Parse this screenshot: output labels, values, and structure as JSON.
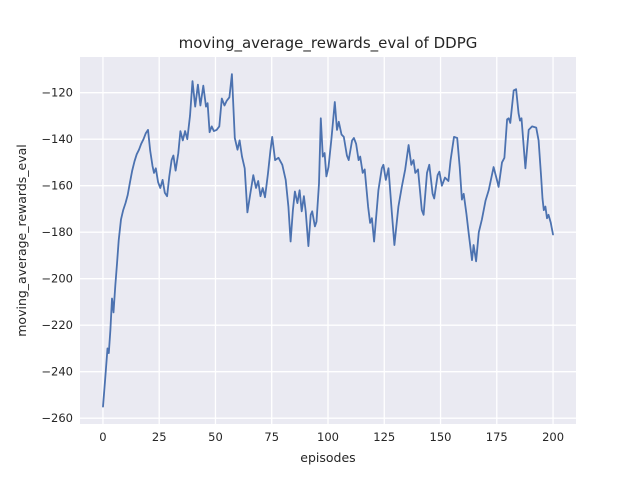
{
  "chart_data": {
    "type": "line",
    "title": "moving_average_rewards_eval of DDPG",
    "xlabel": "episodes",
    "ylabel": "moving_average_rewards_eval",
    "xlim": [
      -10.2,
      210.2
    ],
    "ylim": [
      -262.5,
      -104.65
    ],
    "grid": true,
    "legend_position": "none",
    "plot_background": "#eaeaf2",
    "grid_color": "#ffffff",
    "text_color": "#262626",
    "xticks": [
      {
        "value": 0,
        "label": "0"
      },
      {
        "value": 25,
        "label": "25"
      },
      {
        "value": 50,
        "label": "50"
      },
      {
        "value": 75,
        "label": "75"
      },
      {
        "value": 100,
        "label": "100"
      },
      {
        "value": 125,
        "label": "125"
      },
      {
        "value": 150,
        "label": "150"
      },
      {
        "value": 175,
        "label": "175"
      },
      {
        "value": 200,
        "label": "200"
      }
    ],
    "yticks": [
      {
        "value": -120,
        "label": "−120"
      },
      {
        "value": -140,
        "label": "−140"
      },
      {
        "value": -160,
        "label": "−160"
      },
      {
        "value": -180,
        "label": "−180"
      },
      {
        "value": -200,
        "label": "−200"
      },
      {
        "value": -220,
        "label": "−220"
      },
      {
        "value": -240,
        "label": "−240"
      },
      {
        "value": -260,
        "label": "−260"
      }
    ],
    "series": [
      {
        "name": "moving_average_rewards_eval",
        "color": "#4c72b0",
        "x": [
          0,
          1,
          2,
          2.6,
          3.3,
          4,
          4.7,
          5.5,
          6.3,
          7,
          8,
          9,
          10,
          11,
          12,
          13,
          14,
          15,
          16,
          17,
          18,
          19,
          20,
          21,
          22,
          22.7,
          23.5,
          24.5,
          25.5,
          26.5,
          27.5,
          28.5,
          29.5,
          30.5,
          31.3,
          32.3,
          33.5,
          34.4,
          35.5,
          36.5,
          37.5,
          38.7,
          39.8,
          41,
          42.2,
          43.3,
          44.6,
          45.8,
          46.5,
          47.4,
          48.3,
          49.3,
          50.5,
          51.7,
          52.8,
          54,
          55,
          56.2,
          57.3,
          58.6,
          59.8,
          60.7,
          61.8,
          63,
          64.2,
          65.4,
          66.8,
          68,
          69,
          70,
          71,
          72,
          73.3,
          74.4,
          75.2,
          76.5,
          78,
          79.7,
          81.2,
          82.4,
          83.4,
          84.4,
          85.3,
          86.4,
          87.4,
          88.3,
          89.3,
          90.1,
          91.3,
          92.3,
          93,
          94.2,
          94.9,
          96,
          96.8,
          97.7,
          98.5,
          99.3,
          100.2,
          101.5,
          103,
          104,
          104.8,
          106,
          107,
          108.4,
          109.2,
          110.7,
          111.5,
          112.5,
          113.6,
          114.3,
          115.4,
          116.3,
          117.8,
          118.7,
          119.5,
          120.5,
          122.4,
          123.9,
          124.6,
          125.7,
          126.9,
          128.4,
          129.5,
          131.3,
          132.8,
          134.3,
          135.8,
          137,
          138,
          138.8,
          140,
          141.7,
          142.5,
          144,
          145,
          146.5,
          147.2,
          148.7,
          149.5,
          150.6,
          152,
          153.5,
          154.5,
          156,
          157.4,
          158.5,
          159.5,
          160.3,
          161.5,
          162.5,
          164,
          164.7,
          165.8,
          167,
          168.4,
          170,
          171.4,
          173.6,
          175.2,
          175.8,
          177.3,
          178.4,
          179.6,
          180.3,
          181,
          182.5,
          183.6,
          184.7,
          185.3,
          186,
          187.7,
          189.2,
          190.7,
          192.5,
          193.6,
          194.7,
          195.3,
          195.9,
          196.6,
          197.3,
          198,
          199,
          200
        ],
        "y": [
          -255,
          -243,
          -230,
          -232,
          -222,
          -208.5,
          -214.5,
          -203,
          -193,
          -183.5,
          -174.5,
          -170.5,
          -167.5,
          -164,
          -158.5,
          -153.5,
          -149.5,
          -146.5,
          -144.5,
          -142,
          -140,
          -137.5,
          -136,
          -145,
          -151.5,
          -154.5,
          -152.5,
          -158.5,
          -161,
          -157.5,
          -163,
          -164.5,
          -156,
          -149,
          -147,
          -153.5,
          -146,
          -136.5,
          -140.5,
          -136.5,
          -140,
          -130,
          -115,
          -126,
          -116.5,
          -125.5,
          -117,
          -126,
          -124.5,
          -137,
          -134.5,
          -136.5,
          -136,
          -134.5,
          -122.5,
          -125.5,
          -123.5,
          -122,
          -112,
          -139.5,
          -144.5,
          -140.5,
          -147.5,
          -152.5,
          -171.5,
          -164,
          -155.5,
          -161,
          -158,
          -164.5,
          -161,
          -165,
          -155,
          -145,
          -139,
          -149,
          -148,
          -151,
          -157.5,
          -169,
          -184,
          -170.5,
          -162.5,
          -167.5,
          -162,
          -171,
          -164.5,
          -171,
          -186,
          -172.5,
          -171,
          -177.5,
          -175.5,
          -159,
          -131,
          -147.5,
          -146,
          -156,
          -152,
          -140,
          -124,
          -136,
          -132.5,
          -138,
          -139,
          -147,
          -149,
          -140.5,
          -139.5,
          -142,
          -149,
          -147.5,
          -154.5,
          -153,
          -169,
          -176,
          -174,
          -184,
          -162,
          -152.5,
          -151,
          -157.5,
          -152.5,
          -172,
          -185.5,
          -169,
          -160.5,
          -153,
          -142.5,
          -151,
          -149,
          -154.5,
          -153,
          -170.5,
          -172.5,
          -154.5,
          -151,
          -163.5,
          -165.5,
          -155.5,
          -154,
          -160,
          -156.5,
          -158,
          -149,
          -139,
          -139.5,
          -152,
          -166,
          -163.5,
          -172,
          -180.5,
          -192,
          -185.5,
          -192.5,
          -180,
          -174.5,
          -166.5,
          -162,
          -152,
          -158,
          -160.5,
          -150,
          -148,
          -131.5,
          -131,
          -133,
          -119,
          -118.5,
          -129,
          -132,
          -131,
          -152.5,
          -136,
          -134.5,
          -135,
          -140.5,
          -156,
          -165.5,
          -170.5,
          -169,
          -174,
          -172.5,
          -176,
          -181
        ]
      }
    ]
  }
}
